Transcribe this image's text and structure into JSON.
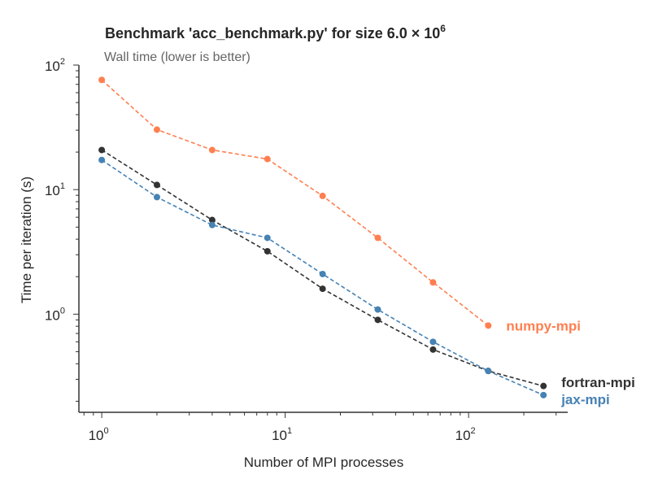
{
  "chart_data": {
    "type": "line",
    "title": "Benchmark 'acc_benchmark.py' for size 6.0 × 10",
    "title_exponent": "6",
    "subtitle": "Wall time (lower is better)",
    "xlabel": "Number of MPI processes",
    "ylabel": "Time per iteration (s)",
    "xscale": "log",
    "yscale": "log",
    "xlim": [
      0.774,
      347
    ],
    "ylim": [
      0.163,
      100
    ],
    "grid": false,
    "legend": "inline labels at line ends",
    "xticks": [
      {
        "base": "10",
        "exp": "0",
        "value": 1
      },
      {
        "base": "10",
        "exp": "1",
        "value": 10
      },
      {
        "base": "10",
        "exp": "2",
        "value": 100
      }
    ],
    "yticks": [
      {
        "base": "10",
        "exp": "0",
        "value": 1
      },
      {
        "base": "10",
        "exp": "1",
        "value": 10
      },
      {
        "base": "10",
        "exp": "2",
        "value": 100
      }
    ],
    "series": [
      {
        "name": "numpy-mpi",
        "color": "#ff7f50",
        "x": [
          1,
          2,
          4,
          8,
          16,
          32,
          64,
          128
        ],
        "y": [
          76,
          30.3,
          20.8,
          17.6,
          8.9,
          4.1,
          1.8,
          0.81
        ]
      },
      {
        "name": "fortran-mpi",
        "color": "#333333",
        "x": [
          1,
          2,
          4,
          8,
          16,
          32,
          64,
          128,
          256
        ],
        "y": [
          20.8,
          10.9,
          5.7,
          3.2,
          1.6,
          0.9,
          0.52,
          0.35,
          0.265
        ]
      },
      {
        "name": "jax-mpi",
        "color": "#4682b4",
        "x": [
          1,
          2,
          4,
          8,
          16,
          32,
          64,
          128,
          256
        ],
        "y": [
          17.3,
          8.7,
          5.2,
          4.1,
          2.1,
          1.09,
          0.6,
          0.35,
          0.224
        ]
      }
    ]
  }
}
